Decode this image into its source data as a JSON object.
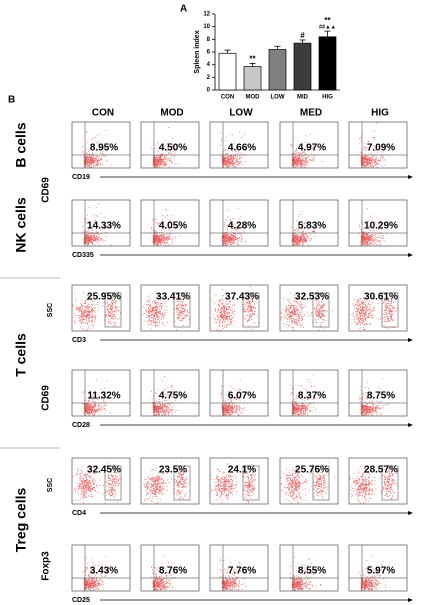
{
  "chart_data": {
    "type": "bar",
    "panel_label": "A",
    "y_label": "Spleen index",
    "categories": [
      "CON",
      "MOD",
      "LOW",
      "MID",
      "HIG"
    ],
    "values": [
      5.8,
      3.7,
      6.4,
      7.4,
      8.4
    ],
    "errors": [
      0.5,
      0.5,
      0.5,
      0.5,
      0.9
    ],
    "colors": [
      "#ffffff",
      "#c8c8c8",
      "#808080",
      "#3c3c3c",
      "#000000"
    ],
    "ylim": [
      0,
      12
    ],
    "yticks": [
      0,
      2,
      4,
      6,
      8,
      10,
      12
    ],
    "annotations": [
      [],
      [
        "**"
      ],
      [],
      [
        "#"
      ],
      [
        "**",
        "##▲▲"
      ]
    ]
  },
  "panel_b": {
    "label": "B",
    "columns": [
      "CON",
      "MOD",
      "LOW",
      "MED",
      "HIG"
    ],
    "groups": [
      "B cells",
      "NK cells",
      "T cells",
      "Treg cells"
    ],
    "y_labels": [
      "CD69",
      "SSC",
      "CD69",
      "SSC",
      "Foxp3"
    ],
    "rows": [
      {
        "x_label": "CD19",
        "percents": [
          "8.95%",
          "4.50%",
          "4.66%",
          "4.97%",
          "7.09%"
        ]
      },
      {
        "x_label": "CD335",
        "percents": [
          "14.33%",
          "4.05%",
          "4.28%",
          "5.83%",
          "10.29%"
        ]
      },
      {
        "x_label": "CD3",
        "percents": [
          "25.95%",
          "33.41%",
          "37.43%",
          "32.53%",
          "30.61%"
        ]
      },
      {
        "x_label": "CD28",
        "percents": [
          "11.32%",
          "4.75%",
          "6.07%",
          "8.37%",
          "8.75%"
        ]
      },
      {
        "x_label": "CD4",
        "percents": [
          "32.45%",
          "23.5%",
          "24.1%",
          "25.76%",
          "28.57%"
        ]
      },
      {
        "x_label": "CD25",
        "percents": [
          "3.43%",
          "8.76%",
          "7.76%",
          "8.55%",
          "5.97%"
        ]
      }
    ]
  }
}
